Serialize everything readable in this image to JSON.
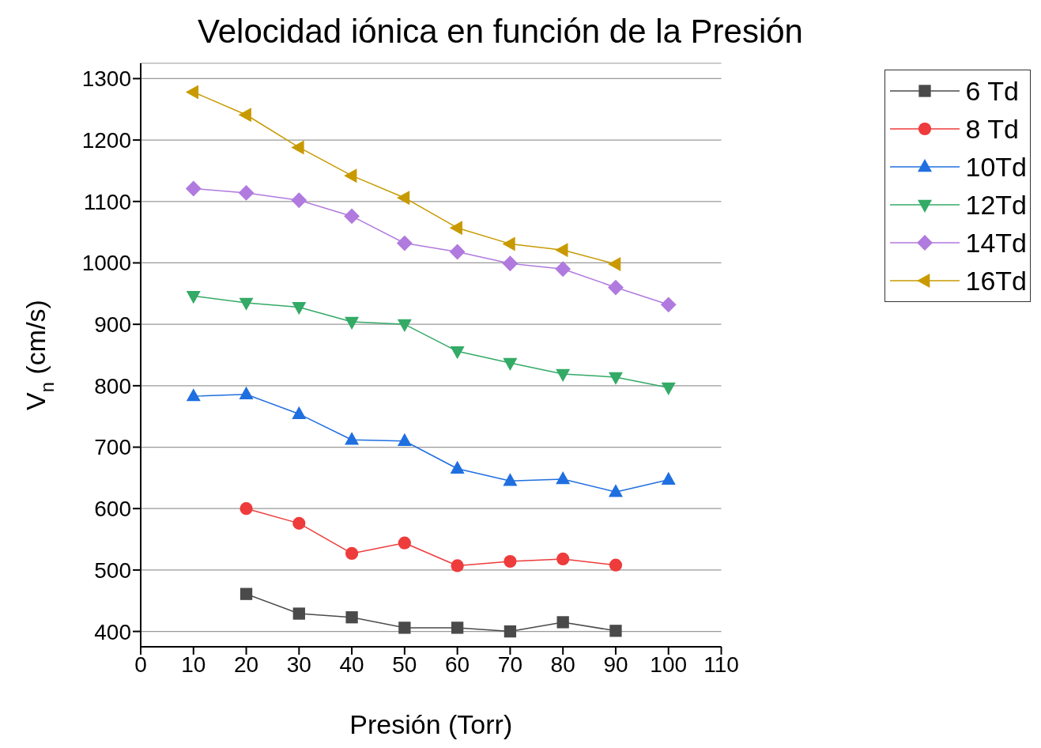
{
  "chart_data": {
    "type": "line",
    "title": "Velocidad iónica en función de la Presión",
    "xlabel": "Presión (Torr)",
    "ylabel": "V$_{n}$ (cm/s)",
    "x": [
      10,
      20,
      30,
      40,
      50,
      60,
      70,
      80,
      90,
      100
    ],
    "series": [
      {
        "name": "6 Td",
        "color": "#4a4a4a",
        "marker": "square",
        "values": [
          null,
          461,
          429,
          423,
          406,
          406,
          400,
          415,
          401,
          null
        ]
      },
      {
        "name": "8 Td",
        "color": "#ee3b3b",
        "marker": "circle",
        "values": [
          null,
          600,
          576,
          527,
          544,
          507,
          514,
          518,
          508,
          null
        ]
      },
      {
        "name": "10Td",
        "color": "#1f6fe0",
        "marker": "triangle",
        "values": [
          783,
          786,
          754,
          712,
          710,
          665,
          645,
          648,
          627,
          647
        ]
      },
      {
        "name": "12Td",
        "color": "#33aa66",
        "marker": "triangle-down",
        "values": [
          946,
          935,
          928,
          904,
          900,
          856,
          837,
          819,
          814,
          797
        ]
      },
      {
        "name": "14Td",
        "color": "#b07ade",
        "marker": "diamond",
        "values": [
          1121,
          1114,
          1102,
          1076,
          1032,
          1018,
          999,
          990,
          960,
          932
        ]
      },
      {
        "name": "16Td",
        "color": "#c89a00",
        "marker": "triangle-left",
        "values": [
          1278,
          1241,
          1188,
          1142,
          1106,
          1057,
          1031,
          1021,
          998,
          null
        ]
      }
    ],
    "xlim": [
      0,
      110
    ],
    "xticks": [
      0,
      10,
      20,
      30,
      40,
      50,
      60,
      70,
      80,
      90,
      100,
      110
    ],
    "ylim": [
      375,
      1325
    ],
    "yticks": [
      400,
      500,
      600,
      700,
      800,
      900,
      1000,
      1100,
      1200,
      1300
    ],
    "grid": "y",
    "legend": "top right",
    "line_style": "solid"
  }
}
